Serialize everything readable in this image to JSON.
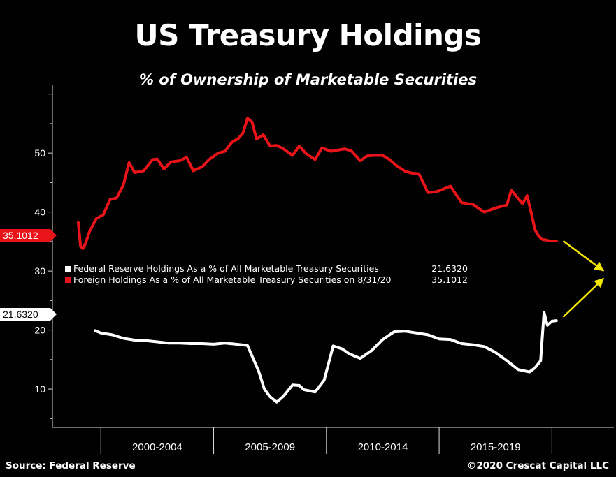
{
  "title": "US Treasury Holdings",
  "subtitle": "% of Ownership of Marketable Securities",
  "source": "Source: Federal Reserve",
  "copyright": "©2020 Crescat Capital LLC",
  "colors": {
    "foreign": "#e8141a",
    "fed": "#ffffff",
    "arrow": "#f5e800",
    "axis": "#dddddd"
  },
  "chart_data": {
    "type": "line",
    "title": "US Treasury Holdings",
    "subtitle": "% of Ownership of Marketable Securities",
    "xlabel": "",
    "ylabel": "",
    "xlim": [
      1999.0,
      2024.0
    ],
    "ylim": [
      3.5,
      61.5
    ],
    "ytick_labels": [
      "10",
      "20",
      "30",
      "40",
      "50"
    ],
    "yticks": [
      10,
      20,
      30,
      40,
      50
    ],
    "x_period_labels": [
      "2000-2004",
      "2005-2009",
      "2010-2014",
      "2015-2019"
    ],
    "x_separators": [
      2000.0,
      2005.0,
      2010.0,
      2015.0,
      2020.0
    ],
    "grid": false,
    "legend_position": "center-left",
    "series": [
      {
        "key": "fed",
        "name": "Federal Reserve Holdings As a % of All Marketable Treasury Securities",
        "last_value_label": "21.6320",
        "x": [
          2000.25,
          2000.5,
          2001.0,
          2001.5,
          2002.0,
          2002.5,
          2003.0,
          2003.5,
          2004.0,
          2004.5,
          2005.0,
          2005.5,
          2006.0,
          2006.5,
          2007.0,
          2007.5,
          2007.75,
          2008.0,
          2008.3,
          2008.6,
          2009.0,
          2009.3,
          2009.5,
          2010.0,
          2010.4,
          2010.8,
          2011.2,
          2011.5,
          2012.0,
          2012.5,
          2013.0,
          2013.5,
          2014.0,
          2014.5,
          2015.0,
          2015.5,
          2016.0,
          2016.5,
          2017.0,
          2017.5,
          2018.0,
          2018.5,
          2019.0,
          2019.5,
          2019.75,
          2020.0,
          2020.15,
          2020.3,
          2020.5,
          2020.7
        ],
        "y": [
          19.9,
          19.5,
          19.2,
          18.6,
          18.3,
          18.2,
          18.0,
          17.8,
          17.8,
          17.7,
          17.7,
          17.6,
          17.8,
          17.6,
          17.4,
          13.0,
          10.0,
          8.7,
          7.8,
          8.8,
          10.7,
          10.6,
          9.9,
          9.5,
          11.5,
          17.3,
          16.8,
          16.0,
          15.2,
          16.5,
          18.4,
          19.7,
          19.8,
          19.5,
          19.2,
          18.5,
          18.4,
          17.7,
          17.5,
          17.2,
          16.2,
          14.8,
          13.3,
          12.9,
          13.6,
          14.8,
          23.0,
          20.8,
          21.5,
          21.6
        ]
      },
      {
        "key": "foreign",
        "name": "Foreign Holdings As a % of All Marketable Treasury Securities on 8/31/20",
        "last_value_label": "35.1012",
        "x": [
          1999.5,
          1999.6,
          1999.7,
          1999.8,
          2000.0,
          2000.3,
          2000.6,
          2000.9,
          2001.2,
          2001.5,
          2001.75,
          2002.0,
          2002.4,
          2002.8,
          2003.0,
          2003.3,
          2003.6,
          2004.0,
          2004.3,
          2004.6,
          2005.0,
          2005.3,
          2005.7,
          2006.0,
          2006.3,
          2006.6,
          2006.8,
          2007.0,
          2007.2,
          2007.4,
          2007.7,
          2008.0,
          2008.3,
          2008.6,
          2009.0,
          2009.3,
          2009.6,
          2010.0,
          2010.3,
          2010.7,
          2011.0,
          2011.3,
          2011.6,
          2012.0,
          2012.3,
          2012.6,
          2013.0,
          2013.3,
          2013.6,
          2014.0,
          2014.3,
          2014.6,
          2015.0,
          2015.3,
          2015.5,
          2016.0,
          2016.5,
          2017.0,
          2017.5,
          2018.0,
          2018.5,
          2018.7,
          2019.0,
          2019.2,
          2019.4,
          2019.6,
          2019.75,
          2019.9,
          2020.0,
          2020.1,
          2020.2,
          2020.4,
          2020.7
        ],
        "y": [
          38.2,
          34.2,
          33.8,
          34.5,
          36.7,
          38.9,
          39.5,
          42.1,
          42.4,
          44.6,
          48.4,
          46.7,
          47.0,
          48.9,
          49.0,
          47.3,
          48.5,
          48.7,
          49.3,
          47.0,
          47.7,
          48.9,
          50.0,
          50.3,
          51.8,
          52.5,
          53.4,
          55.9,
          55.3,
          52.4,
          53.1,
          51.2,
          51.3,
          50.7,
          49.6,
          51.2,
          49.9,
          48.9,
          50.9,
          50.3,
          50.5,
          50.7,
          50.4,
          48.7,
          49.5,
          49.6,
          49.6,
          48.9,
          47.9,
          46.9,
          46.6,
          46.5,
          43.3,
          43.4,
          43.6,
          44.4,
          41.6,
          41.3,
          40.0,
          40.7,
          41.2,
          43.7,
          42.3,
          41.4,
          42.8,
          39.6,
          37.0,
          36.0,
          35.6,
          35.3,
          35.3,
          35.1,
          35.1
        ]
      }
    ],
    "annotations": [
      {
        "type": "arrow",
        "x0": 2021.0,
        "y0": 35.1,
        "x1": 2022.8,
        "y1": 30.0
      },
      {
        "type": "arrow",
        "x0": 2021.0,
        "y0": 22.2,
        "x1": 2022.8,
        "y1": 28.8
      }
    ]
  },
  "legend": {
    "fed_text": "Federal Reserve Holdings As a % of All Marketable Treasury Securities",
    "fed_value": "21.6320",
    "foreign_text": "Foreign Holdings As a % of All Marketable Treasury Securities on 8/31/20",
    "foreign_value": "35.1012"
  },
  "tags": {
    "foreign": "35.1012",
    "fed": "21.6320"
  }
}
